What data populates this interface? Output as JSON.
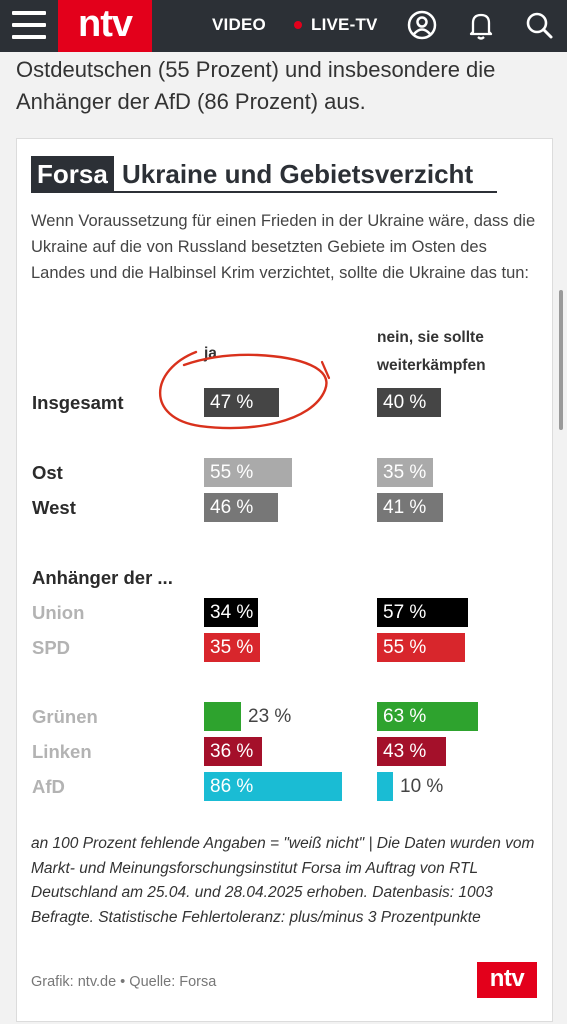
{
  "header": {
    "logo": "ntv",
    "nav_video": "VIDEO",
    "nav_live": "LIVE-TV",
    "icons": [
      "menu-icon",
      "user-icon",
      "bell-icon",
      "search-icon"
    ],
    "colors": {
      "bar": "#2c3036",
      "brand_red": "#e3001b",
      "live_dot": "#e3001b"
    }
  },
  "article": {
    "text": "Ostdeutschen (55 Prozent) und insbesondere die Anhänger der AfD (86 Prozent) aus."
  },
  "graphic": {
    "brand": "Forsa",
    "footer_logo": "ntv",
    "source": "Grafik: ntv.de • Quelle: Forsa",
    "footnote": "an 100 Prozent fehlende Angaben = \"weiß nicht\" | Die Daten wurden vom Markt- und Meinungsforschungsinstitut Forsa im Auftrag von RTL Deutschland am 25.04. und 28.04.2025 erhoben. Datenbasis: 1003 Befragte. Statistische Fehlertoleranz: plus/minus 3 Prozentpunkte"
  },
  "chart_data": {
    "type": "bar",
    "title": "Ukraine und Gebietsverzicht",
    "question": "Wenn Voraussetzung für einen Frieden in der Ukraine wäre, dass die Ukraine auf die von Russland besetzten Gebiete im Osten des Landes und die Halbinsel Krim verzichtet, sollte die Ukraine das tun:",
    "value_suffix": " %",
    "group_heading": "Anhänger der ...",
    "series": [
      {
        "name": "ja"
      },
      {
        "name": "nein, sie sollte weiterkämpfen"
      }
    ],
    "rows": [
      {
        "label": "Insgesamt",
        "style": "main",
        "color": "#454545",
        "ja": 47,
        "nein": 40
      },
      {
        "label": "Ost",
        "style": "main",
        "color": "#aaaaaa",
        "ja": 55,
        "nein": 35
      },
      {
        "label": "West",
        "style": "main",
        "color": "#777777",
        "ja": 46,
        "nein": 41
      },
      {
        "label": "Union",
        "style": "party",
        "color": "#000000",
        "ja": 34,
        "nein": 57
      },
      {
        "label": "SPD",
        "style": "party",
        "color": "#d8262c",
        "ja": 35,
        "nein": 55
      },
      {
        "label": "Grünen",
        "style": "party",
        "color": "#2ea32e",
        "ja": 23,
        "nein": 63
      },
      {
        "label": "Linken",
        "style": "party",
        "color": "#a4102a",
        "ja": 36,
        "nein": 43
      },
      {
        "label": "AfD",
        "style": "party",
        "color": "#1abcd4",
        "ja": 86,
        "nein": 10
      }
    ],
    "annotation": {
      "type": "hand-drawn circle",
      "target": "Insgesamt / ja",
      "color": "#d9311c"
    }
  }
}
